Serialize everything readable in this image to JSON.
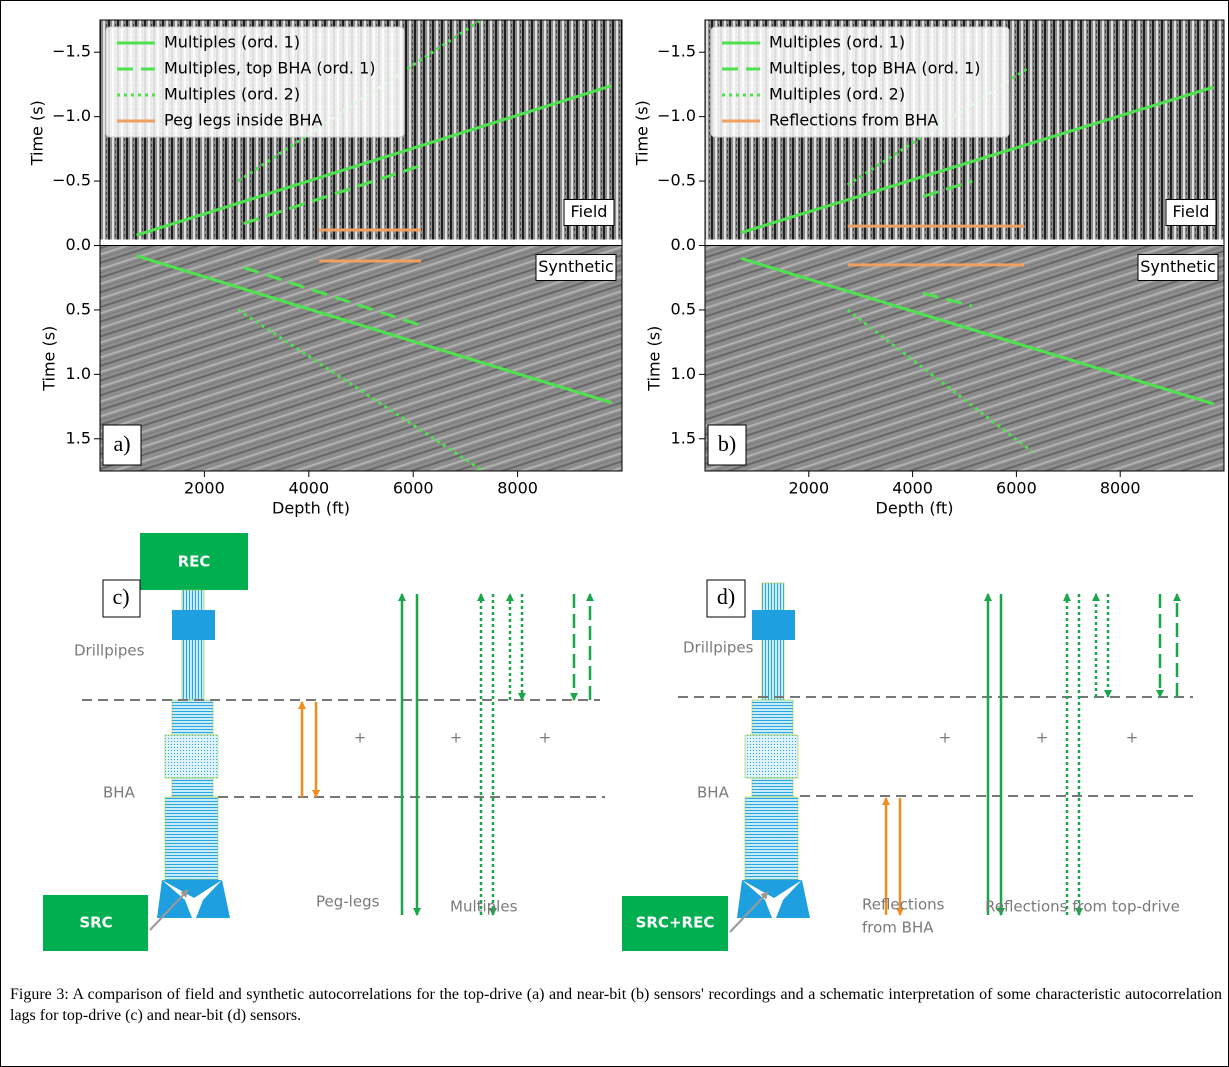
{
  "chart_data": [
    {
      "type": "line",
      "panel_label": "a)",
      "xlabel": "Depth (ft)",
      "ylabels": [
        "Time (s)",
        "Time (s)"
      ],
      "field_label": "Field",
      "synthetic_label": "Synthetic",
      "xlim": [
        0,
        10000
      ],
      "xticks": [
        2000,
        4000,
        6000,
        8000
      ],
      "ylim": [
        -1.75,
        1.75
      ],
      "y_inverted": true,
      "yticks": [
        {
          "value": -1.5,
          "label": "−1.5"
        },
        {
          "value": -1.0,
          "label": "−1.0"
        },
        {
          "value": -0.5,
          "label": "−0.5"
        },
        {
          "value": 0,
          "label": "0.0"
        },
        0.5,
        {
          "value": 1.0,
          "label": "1.0"
        },
        1.5
      ],
      "legend": "upper left",
      "series": [
        {
          "name": "Multiples (ord. 1)",
          "color": "#4ee24e",
          "dash": "solid",
          "field": {
            "x": [
              700,
              9800
            ],
            "values": [
              -0.08,
              -1.24
            ]
          },
          "synthetic": {
            "x": [
              700,
              9800
            ],
            "values": [
              0.08,
              1.22
            ]
          }
        },
        {
          "name": "Multiples, top BHA (ord. 1)",
          "color": "#4ee24e",
          "dash": "dashed",
          "field": {
            "x": [
              2750,
              6150
            ],
            "values": [
              -0.17,
              -0.62
            ]
          },
          "synthetic": {
            "x": [
              2750,
              6150
            ],
            "values": [
              0.17,
              0.62
            ]
          }
        },
        {
          "name": "Multiples (ord. 2)",
          "color": "#4ee24e",
          "dash": "dotted",
          "field": {
            "x": [
              2650,
              7300
            ],
            "values": [
              -0.5,
              -1.75
            ]
          },
          "synthetic": {
            "x": [
              2650,
              7300
            ],
            "values": [
              0.5,
              1.74
            ]
          }
        },
        {
          "name": "Peg legs inside BHA",
          "color": "#f0a060",
          "dash": "solid",
          "field": {
            "x": [
              4200,
              6150
            ],
            "values": [
              -0.12,
              -0.12
            ]
          },
          "synthetic": {
            "x": [
              4200,
              6150
            ],
            "values": [
              0.12,
              0.12
            ]
          }
        }
      ]
    },
    {
      "type": "line",
      "panel_label": "b)",
      "xlabel": "Depth (ft)",
      "ylabels": [
        "Time (s)",
        "Time (s)"
      ],
      "field_label": "Field",
      "synthetic_label": "Synthetic",
      "xlim": [
        0,
        10000
      ],
      "xticks": [
        2000,
        4000,
        6000,
        8000
      ],
      "ylim": [
        -1.75,
        1.75
      ],
      "y_inverted": true,
      "yticks": [
        {
          "value": -1.5,
          "label": "−1.5"
        },
        {
          "value": -1.0,
          "label": "−1.0"
        },
        {
          "value": -0.5,
          "label": "−0.5"
        },
        {
          "value": 0,
          "label": "0.0"
        },
        0.5,
        {
          "value": 1.0,
          "label": "1.0"
        },
        1.5
      ],
      "legend": "upper left",
      "series": [
        {
          "name": "Multiples (ord. 1)",
          "color": "#4ee24e",
          "dash": "solid",
          "field": {
            "x": [
              700,
              9800
            ],
            "values": [
              -0.1,
              -1.23
            ]
          },
          "synthetic": {
            "x": [
              700,
              9800
            ],
            "values": [
              0.1,
              1.23
            ]
          }
        },
        {
          "name": "Multiples, top BHA (ord. 1)",
          "color": "#4ee24e",
          "dash": "dashed",
          "field": {
            "x": [
              4200,
              5150
            ],
            "values": [
              -0.38,
              -0.5
            ]
          },
          "synthetic": {
            "x": [
              4200,
              5150
            ],
            "values": [
              0.37,
              0.47
            ]
          }
        },
        {
          "name": "Multiples (ord. 2)",
          "color": "#4ee24e",
          "dash": "dotted",
          "field": {
            "x": [
              2750,
              6200
            ],
            "values": [
              -0.47,
              -1.37
            ]
          },
          "synthetic": {
            "x": [
              2750,
              6300
            ],
            "values": [
              0.5,
              1.6
            ]
          }
        },
        {
          "name": "Reflections from BHA",
          "color": "#f0a060",
          "dash": "solid",
          "field": {
            "x": [
              2750,
              6150
            ],
            "values": [
              -0.15,
              -0.15
            ]
          },
          "synthetic": {
            "x": [
              2750,
              6150
            ],
            "values": [
              0.15,
              0.15
            ]
          }
        }
      ]
    }
  ],
  "diagrams": [
    {
      "panel_label": "c)",
      "rec": "REC",
      "drillpipes": "Drillpipes",
      "bha": "BHA",
      "src": "SRC",
      "plus_signs": [
        "+",
        "+",
        "+"
      ],
      "peg_legs": "Peg-legs",
      "multiples": "Multiples"
    },
    {
      "panel_label": "d)",
      "drillpipes": "Drillpipes",
      "bha": "BHA",
      "src_rec": "SRC+REC",
      "plus_signs": [
        "+",
        "+",
        "+"
      ],
      "reflections_bha": [
        "Reflections",
        "from BHA"
      ],
      "reflections_top_drive": "Reflections from top-drive"
    }
  ],
  "caption": "Figure 3: A comparison of field and synthetic autocorrelations for the top-drive (a) and near-bit (b) sensors' recordings and a schematic interpretation of some characteristic autocorrelation lags for top-drive (c) and near-bit (d) sensors."
}
